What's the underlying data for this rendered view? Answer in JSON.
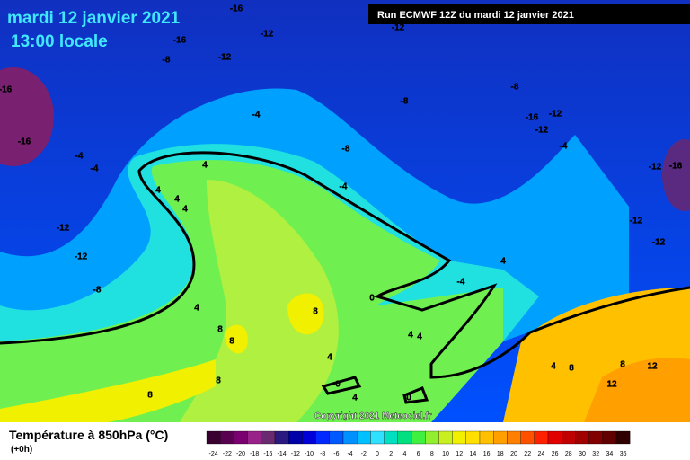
{
  "header": {
    "date": "mardi 12 janvier 2021",
    "time": "13:00 locale",
    "run": "Run ECMWF 12Z du mardi 12 janvier 2021"
  },
  "copyright": "Copyright 2021 Meteociel.fr",
  "legend": {
    "title": "Température à 850hPa (°C)",
    "lead": "(+0h)"
  },
  "colorbar": {
    "ticks": [
      -24,
      -22,
      -20,
      -18,
      -16,
      -14,
      -12,
      -10,
      -8,
      -6,
      -4,
      -2,
      0,
      2,
      4,
      6,
      8,
      10,
      12,
      14,
      16,
      18,
      20,
      22,
      24,
      26,
      28,
      30,
      32,
      34,
      36
    ],
    "colors": [
      "#3a0030",
      "#5a0050",
      "#7a0070",
      "#992288",
      "#6a2a70",
      "#2a1a80",
      "#0000a8",
      "#0000d8",
      "#0028ff",
      "#0058ff",
      "#0090ff",
      "#00c0ff",
      "#30e0ff",
      "#00e0c0",
      "#00e080",
      "#40f040",
      "#90f030",
      "#c8f020",
      "#f0f000",
      "#ffe000",
      "#ffc000",
      "#ffa000",
      "#ff8000",
      "#ff5000",
      "#ff2000",
      "#e00000",
      "#c00000",
      "#a00000",
      "#800000",
      "#600000",
      "#300000"
    ]
  },
  "contour_labels": [
    -16,
    -16,
    -12,
    -12,
    -8,
    -12,
    -16,
    -16,
    -4,
    -4,
    -4,
    -8,
    -8,
    -16,
    -12,
    -12,
    -4,
    -8,
    -4,
    -12,
    -16,
    -12,
    -12,
    -12,
    -12,
    -8,
    4,
    4,
    4,
    4,
    4,
    -4,
    0,
    4,
    8,
    8,
    8,
    4,
    4,
    4,
    0,
    4,
    0,
    8,
    8,
    4,
    8,
    8,
    12,
    12
  ]
}
